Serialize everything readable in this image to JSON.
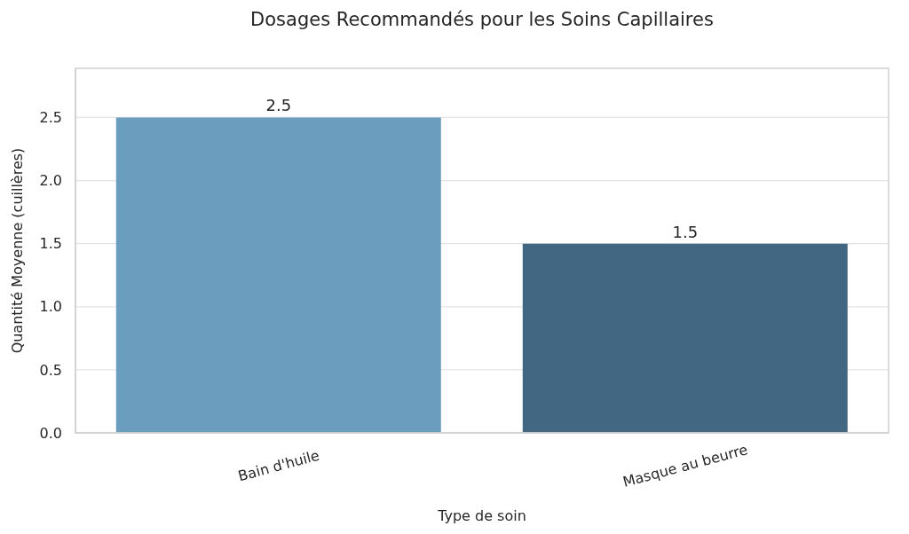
{
  "chart_data": {
    "type": "bar",
    "title": "Dosages Recommandés pour les Soins Capillaires",
    "xlabel": "Type de soin",
    "ylabel": "Quantité Moyenne (cuillères)",
    "categories": [
      "Bain d'huile",
      "Masque au beurre"
    ],
    "values": [
      2.5,
      1.5
    ],
    "colors": [
      "#6b9dbf",
      "#426783"
    ],
    "ylim": [
      0,
      2.89
    ],
    "yticks": [
      {
        "value": 0,
        "label": "0.0"
      },
      0.5,
      {
        "value": 1,
        "label": "1.0"
      },
      1.5,
      {
        "value": 2,
        "label": "2.0"
      },
      2.5
    ],
    "grid": "y",
    "data_labels": true
  }
}
